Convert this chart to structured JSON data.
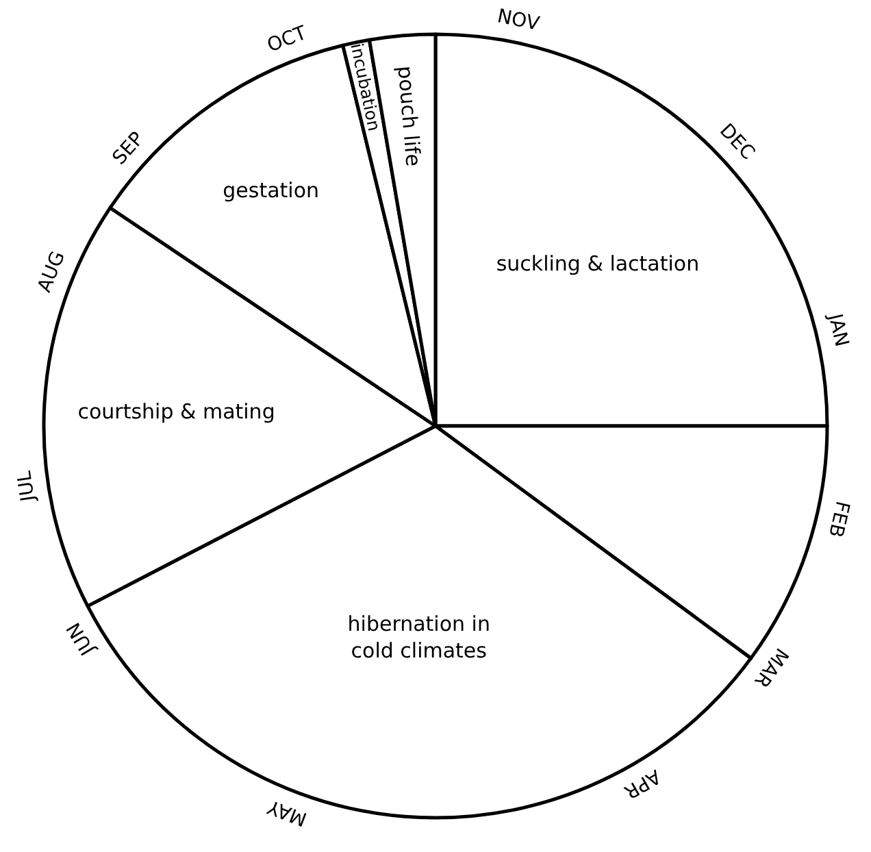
{
  "chart_data": {
    "type": "pie",
    "categories": [
      "suckling & lactation",
      null,
      "hibernation in cold climates",
      "courtship & mating",
      "gestation",
      "incubation",
      "pouch life"
    ],
    "values": [
      25,
      10.1,
      32.3,
      17,
      11.8,
      1.1,
      2.7
    ],
    "colors": [
      "#ffffff",
      "#ffffff",
      "#ffffff",
      "#ffffff",
      "#ffffff",
      "#ffffff",
      "#ffffff"
    ],
    "annotations": [
      "NOV",
      "DEC",
      "JAN",
      "FEB",
      "MAR",
      "APR",
      "MAY",
      "JUN",
      "JUL",
      "AUG",
      "SEP",
      "OCT"
    ],
    "legend": false
  }
}
